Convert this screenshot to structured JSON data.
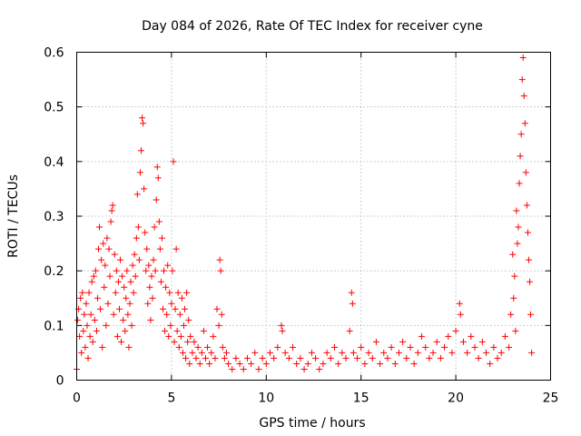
{
  "chart_data": {
    "type": "scatter",
    "title": "Day 084 of 2026, Rate Of TEC Index for receiver cyne",
    "xlabel": "GPS time / hours",
    "ylabel": "ROTI / TECUs",
    "xlim": [
      0,
      25
    ],
    "ylim": [
      0,
      0.6
    ],
    "x_ticks": [
      "0",
      "5",
      "10",
      "15",
      "20",
      "25"
    ],
    "x_tick_values": [
      0,
      5,
      10,
      15,
      20,
      25
    ],
    "y_ticks": [
      "0",
      "0.1",
      "0.2",
      "0.3",
      "0.4",
      "0.5",
      "0.6"
    ],
    "y_tick_values": [
      0,
      0.1,
      0.2,
      0.3,
      0.4,
      0.5,
      0.6
    ],
    "grid": true,
    "marker": "plus",
    "color": "#ff0000",
    "series": [
      {
        "values_note_excluded": true,
        "points": [
          [
            0.0,
            0.02
          ],
          [
            0.05,
            0.11
          ],
          [
            0.1,
            0.13
          ],
          [
            0.15,
            0.08
          ],
          [
            0.2,
            0.15
          ],
          [
            0.25,
            0.05
          ],
          [
            0.3,
            0.16
          ],
          [
            0.35,
            0.09
          ],
          [
            0.4,
            0.12
          ],
          [
            0.45,
            0.06
          ],
          [
            0.5,
            0.14
          ],
          [
            0.55,
            0.1
          ],
          [
            0.6,
            0.04
          ],
          [
            0.65,
            0.16
          ],
          [
            0.7,
            0.08
          ],
          [
            0.75,
            0.12
          ],
          [
            0.8,
            0.18
          ],
          [
            0.85,
            0.07
          ],
          [
            0.9,
            0.19
          ],
          [
            0.95,
            0.11
          ],
          [
            1.0,
            0.2
          ],
          [
            1.05,
            0.09
          ],
          [
            1.1,
            0.15
          ],
          [
            1.15,
            0.24
          ],
          [
            1.2,
            0.28
          ],
          [
            1.25,
            0.13
          ],
          [
            1.3,
            0.22
          ],
          [
            1.35,
            0.06
          ],
          [
            1.4,
            0.25
          ],
          [
            1.45,
            0.17
          ],
          [
            1.5,
            0.21
          ],
          [
            1.55,
            0.1
          ],
          [
            1.6,
            0.26
          ],
          [
            1.65,
            0.14
          ],
          [
            1.7,
            0.24
          ],
          [
            1.75,
            0.19
          ],
          [
            1.8,
            0.29
          ],
          [
            1.85,
            0.31
          ],
          [
            1.9,
            0.32
          ],
          [
            1.95,
            0.12
          ],
          [
            2.0,
            0.23
          ],
          [
            2.05,
            0.16
          ],
          [
            2.1,
            0.2
          ],
          [
            2.15,
            0.08
          ],
          [
            2.2,
            0.18
          ],
          [
            2.25,
            0.13
          ],
          [
            2.3,
            0.22
          ],
          [
            2.35,
            0.07
          ],
          [
            2.4,
            0.19
          ],
          [
            2.45,
            0.11
          ],
          [
            2.5,
            0.17
          ],
          [
            2.55,
            0.09
          ],
          [
            2.6,
            0.15
          ],
          [
            2.65,
            0.2
          ],
          [
            2.7,
            0.12
          ],
          [
            2.75,
            0.06
          ],
          [
            2.8,
            0.14
          ],
          [
            2.85,
            0.18
          ],
          [
            2.9,
            0.1
          ],
          [
            2.95,
            0.21
          ],
          [
            3.0,
            0.16
          ],
          [
            3.05,
            0.23
          ],
          [
            3.1,
            0.19
          ],
          [
            3.15,
            0.26
          ],
          [
            3.2,
            0.34
          ],
          [
            3.25,
            0.28
          ],
          [
            3.3,
            0.22
          ],
          [
            3.35,
            0.38
          ],
          [
            3.4,
            0.42
          ],
          [
            3.45,
            0.48
          ],
          [
            3.5,
            0.47
          ],
          [
            3.55,
            0.35
          ],
          [
            3.6,
            0.27
          ],
          [
            3.65,
            0.2
          ],
          [
            3.7,
            0.24
          ],
          [
            3.75,
            0.14
          ],
          [
            3.8,
            0.21
          ],
          [
            3.85,
            0.17
          ],
          [
            3.9,
            0.11
          ],
          [
            3.95,
            0.19
          ],
          [
            4.0,
            0.15
          ],
          [
            4.05,
            0.22
          ],
          [
            4.1,
            0.28
          ],
          [
            4.15,
            0.2
          ],
          [
            4.2,
            0.33
          ],
          [
            4.25,
            0.39
          ],
          [
            4.3,
            0.37
          ],
          [
            4.35,
            0.29
          ],
          [
            4.4,
            0.24
          ],
          [
            4.45,
            0.18
          ],
          [
            4.5,
            0.26
          ],
          [
            4.55,
            0.13
          ],
          [
            4.6,
            0.2
          ],
          [
            4.65,
            0.09
          ],
          [
            4.7,
            0.17
          ],
          [
            4.75,
            0.12
          ],
          [
            4.8,
            0.21
          ],
          [
            4.85,
            0.08
          ],
          [
            4.9,
            0.16
          ],
          [
            4.95,
            0.1
          ],
          [
            5.0,
            0.14
          ],
          [
            5.05,
            0.2
          ],
          [
            5.1,
            0.4
          ],
          [
            5.15,
            0.07
          ],
          [
            5.2,
            0.13
          ],
          [
            5.25,
            0.24
          ],
          [
            5.3,
            0.09
          ],
          [
            5.35,
            0.16
          ],
          [
            5.4,
            0.06
          ],
          [
            5.45,
            0.12
          ],
          [
            5.5,
            0.08
          ],
          [
            5.55,
            0.15
          ],
          [
            5.6,
            0.05
          ],
          [
            5.65,
            0.1
          ],
          [
            5.7,
            0.13
          ],
          [
            5.75,
            0.04
          ],
          [
            5.8,
            0.16
          ],
          [
            5.85,
            0.07
          ],
          [
            5.9,
            0.11
          ],
          [
            5.95,
            0.03
          ],
          [
            6.0,
            0.08
          ],
          [
            6.1,
            0.05
          ],
          [
            6.2,
            0.07
          ],
          [
            6.3,
            0.04
          ],
          [
            6.4,
            0.06
          ],
          [
            6.5,
            0.03
          ],
          [
            6.6,
            0.05
          ],
          [
            6.7,
            0.09
          ],
          [
            6.8,
            0.04
          ],
          [
            6.9,
            0.06
          ],
          [
            7.0,
            0.03
          ],
          [
            7.1,
            0.05
          ],
          [
            7.2,
            0.08
          ],
          [
            7.3,
            0.04
          ],
          [
            7.4,
            0.13
          ],
          [
            7.5,
            0.1
          ],
          [
            7.55,
            0.22
          ],
          [
            7.6,
            0.2
          ],
          [
            7.65,
            0.12
          ],
          [
            7.7,
            0.06
          ],
          [
            7.8,
            0.04
          ],
          [
            7.9,
            0.05
          ],
          [
            8.0,
            0.03
          ],
          [
            8.2,
            0.02
          ],
          [
            8.4,
            0.04
          ],
          [
            8.6,
            0.03
          ],
          [
            8.8,
            0.02
          ],
          [
            9.0,
            0.04
          ],
          [
            9.2,
            0.03
          ],
          [
            9.4,
            0.05
          ],
          [
            9.6,
            0.02
          ],
          [
            9.8,
            0.04
          ],
          [
            10.0,
            0.03
          ],
          [
            10.2,
            0.05
          ],
          [
            10.4,
            0.04
          ],
          [
            10.6,
            0.06
          ],
          [
            10.8,
            0.1
          ],
          [
            10.85,
            0.09
          ],
          [
            11.0,
            0.05
          ],
          [
            11.2,
            0.04
          ],
          [
            11.4,
            0.06
          ],
          [
            11.6,
            0.03
          ],
          [
            11.8,
            0.04
          ],
          [
            12.0,
            0.02
          ],
          [
            12.2,
            0.03
          ],
          [
            12.4,
            0.05
          ],
          [
            12.6,
            0.04
          ],
          [
            12.8,
            0.02
          ],
          [
            13.0,
            0.03
          ],
          [
            13.2,
            0.05
          ],
          [
            13.4,
            0.04
          ],
          [
            13.6,
            0.06
          ],
          [
            13.8,
            0.03
          ],
          [
            14.0,
            0.05
          ],
          [
            14.2,
            0.04
          ],
          [
            14.4,
            0.09
          ],
          [
            14.5,
            0.16
          ],
          [
            14.55,
            0.14
          ],
          [
            14.6,
            0.05
          ],
          [
            14.8,
            0.04
          ],
          [
            15.0,
            0.06
          ],
          [
            15.2,
            0.03
          ],
          [
            15.4,
            0.05
          ],
          [
            15.6,
            0.04
          ],
          [
            15.8,
            0.07
          ],
          [
            16.0,
            0.03
          ],
          [
            16.2,
            0.05
          ],
          [
            16.4,
            0.04
          ],
          [
            16.6,
            0.06
          ],
          [
            16.8,
            0.03
          ],
          [
            17.0,
            0.05
          ],
          [
            17.2,
            0.07
          ],
          [
            17.4,
            0.04
          ],
          [
            17.6,
            0.06
          ],
          [
            17.8,
            0.03
          ],
          [
            18.0,
            0.05
          ],
          [
            18.2,
            0.08
          ],
          [
            18.4,
            0.06
          ],
          [
            18.6,
            0.04
          ],
          [
            18.8,
            0.05
          ],
          [
            19.0,
            0.07
          ],
          [
            19.2,
            0.04
          ],
          [
            19.4,
            0.06
          ],
          [
            19.6,
            0.08
          ],
          [
            19.8,
            0.05
          ],
          [
            20.0,
            0.09
          ],
          [
            20.2,
            0.14
          ],
          [
            20.25,
            0.12
          ],
          [
            20.4,
            0.07
          ],
          [
            20.6,
            0.05
          ],
          [
            20.8,
            0.08
          ],
          [
            21.0,
            0.06
          ],
          [
            21.2,
            0.04
          ],
          [
            21.4,
            0.07
          ],
          [
            21.6,
            0.05
          ],
          [
            21.8,
            0.03
          ],
          [
            22.0,
            0.06
          ],
          [
            22.2,
            0.04
          ],
          [
            22.4,
            0.05
          ],
          [
            22.6,
            0.08
          ],
          [
            22.8,
            0.06
          ],
          [
            22.9,
            0.12
          ],
          [
            23.0,
            0.23
          ],
          [
            23.05,
            0.15
          ],
          [
            23.1,
            0.19
          ],
          [
            23.15,
            0.09
          ],
          [
            23.2,
            0.31
          ],
          [
            23.25,
            0.25
          ],
          [
            23.3,
            0.28
          ],
          [
            23.35,
            0.36
          ],
          [
            23.4,
            0.41
          ],
          [
            23.45,
            0.45
          ],
          [
            23.5,
            0.55
          ],
          [
            23.55,
            0.59
          ],
          [
            23.6,
            0.52
          ],
          [
            23.65,
            0.47
          ],
          [
            23.7,
            0.38
          ],
          [
            23.75,
            0.32
          ],
          [
            23.8,
            0.27
          ],
          [
            23.85,
            0.22
          ],
          [
            23.9,
            0.18
          ],
          [
            23.95,
            0.12
          ],
          [
            24.0,
            0.05
          ]
        ]
      }
    ]
  }
}
